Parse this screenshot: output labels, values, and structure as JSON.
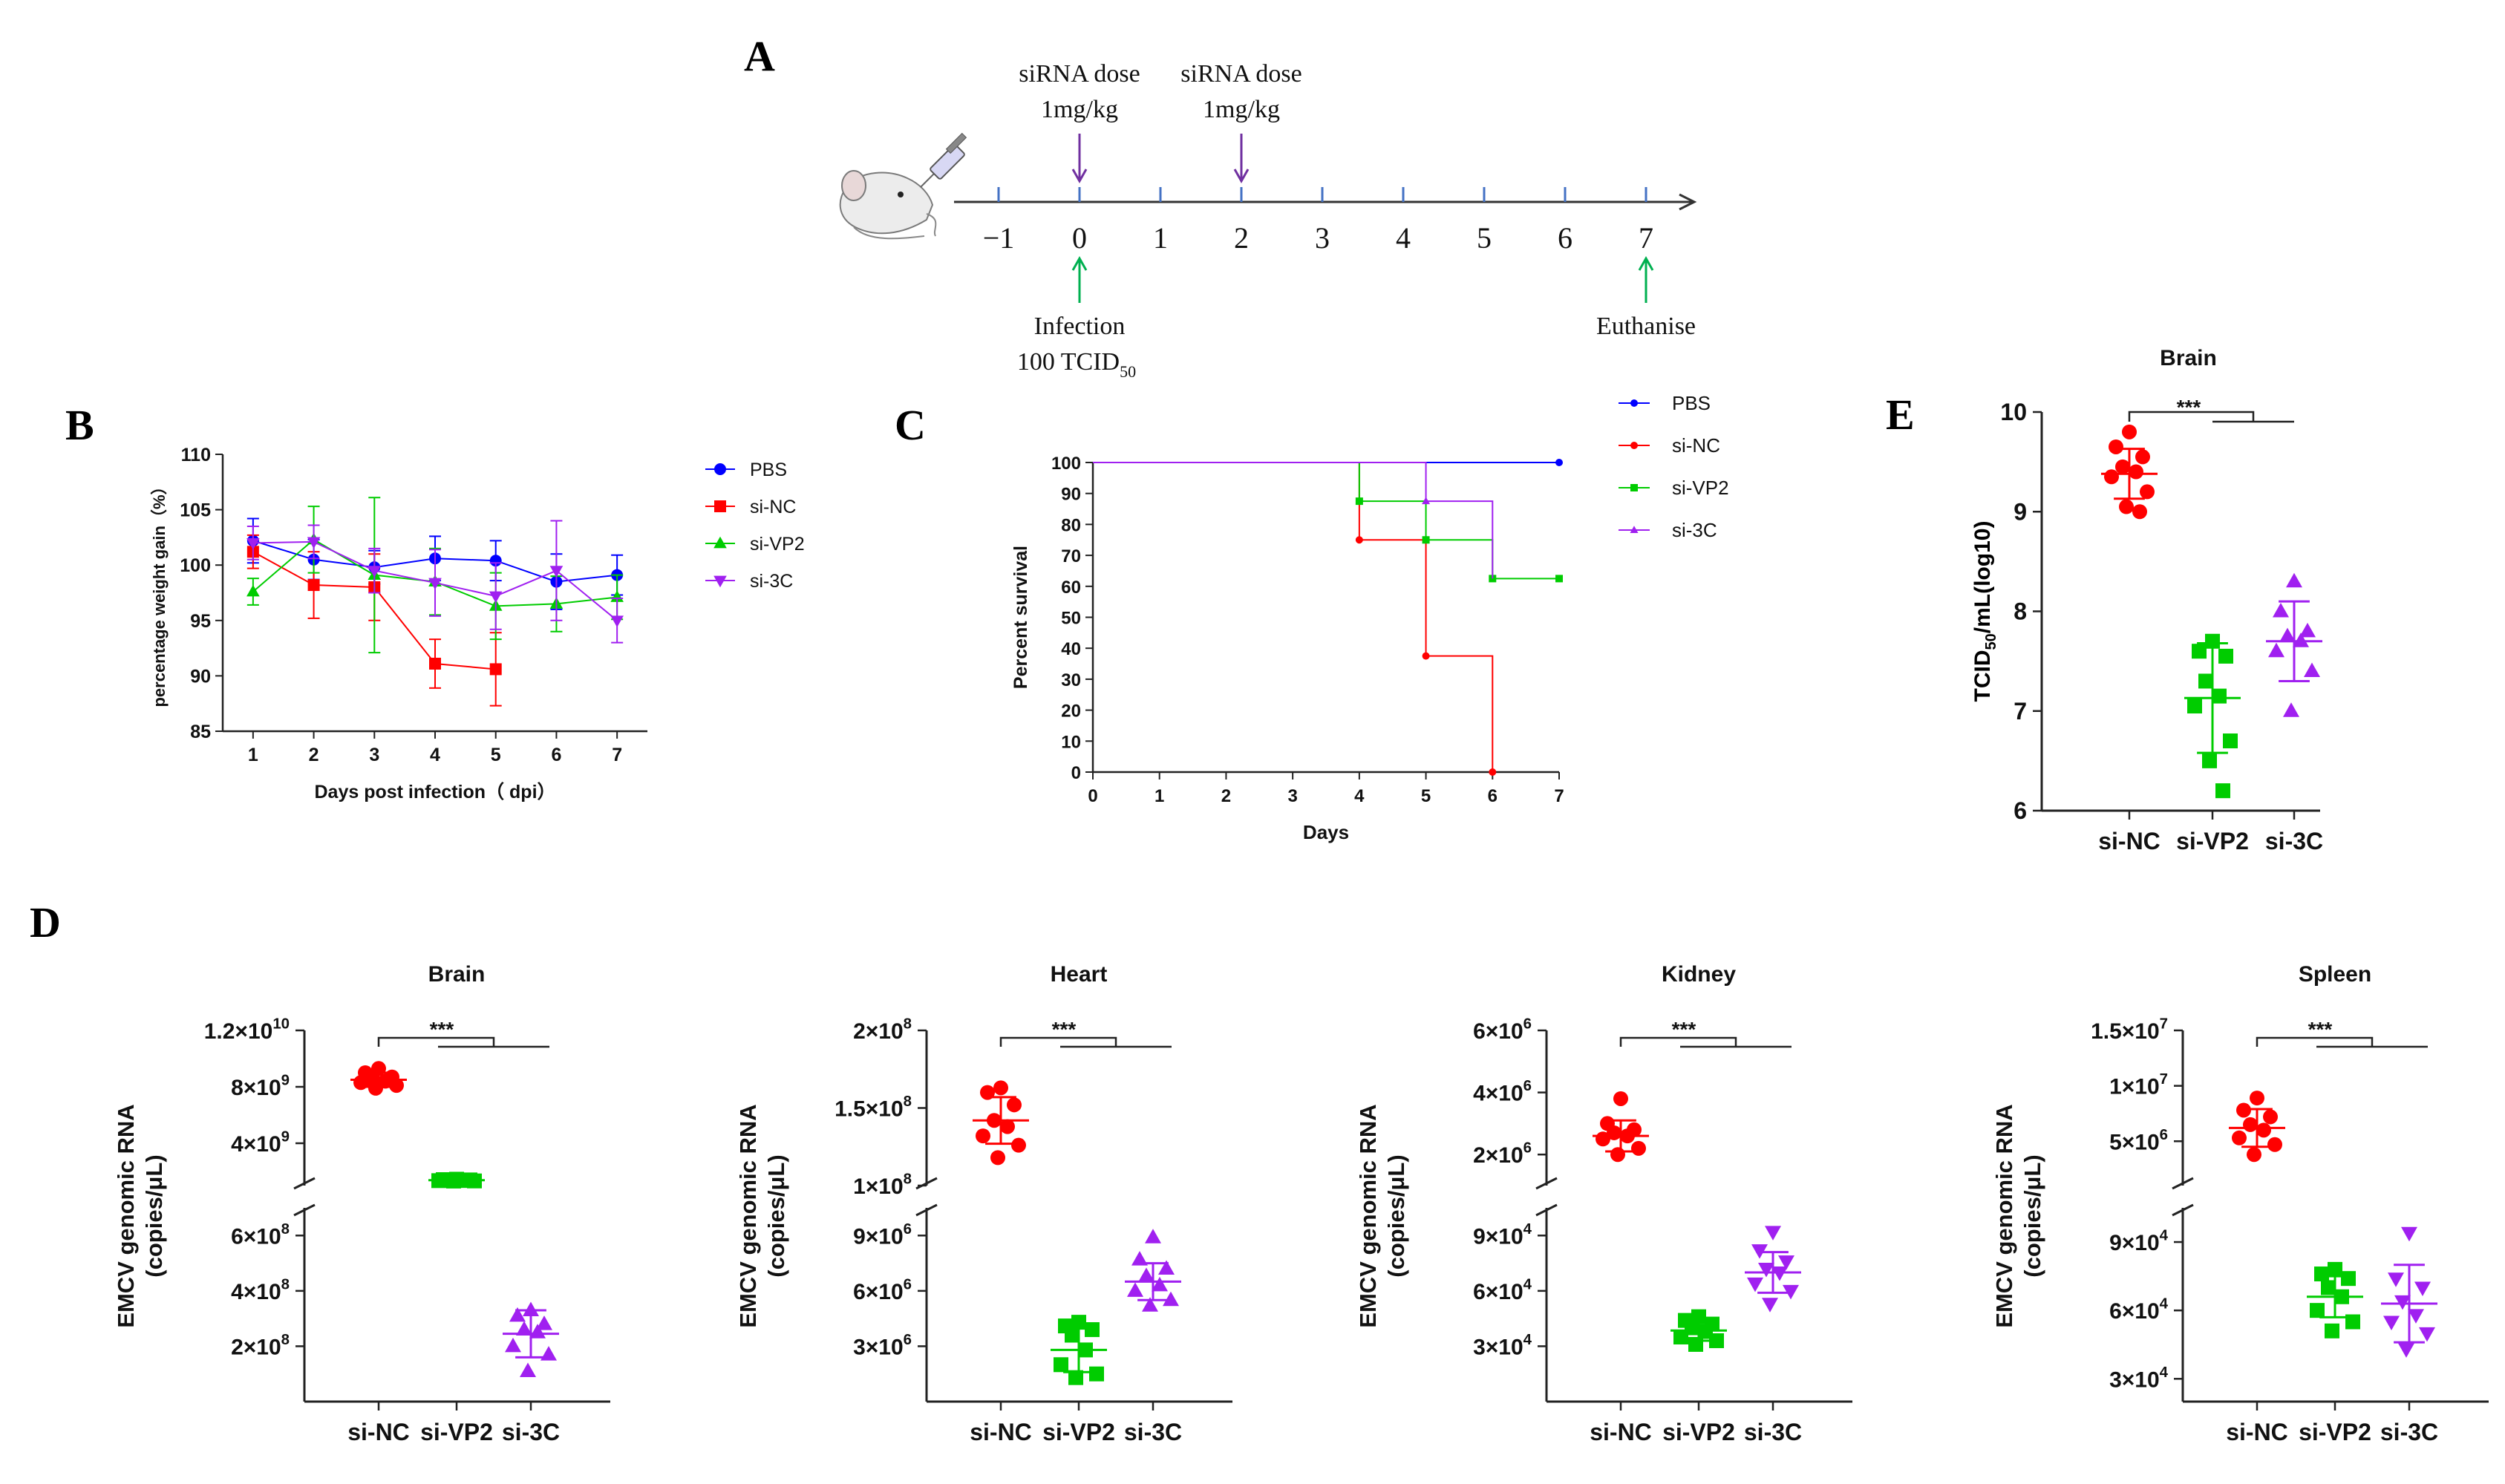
{
  "panel_labels": {
    "A": "A",
    "B": "B",
    "C": "C",
    "D": "D",
    "E": "E"
  },
  "timeline": {
    "ticks": [
      "−1",
      "0",
      "1",
      "2",
      "3",
      "4",
      "5",
      "6",
      "7"
    ],
    "dose1": [
      "siRNA dose",
      "1mg/kg"
    ],
    "dose2": [
      "siRNA dose",
      "1mg/kg"
    ],
    "infection": [
      "Infection",
      "100 TCID",
      "50"
    ],
    "euthanise": "Euthanise",
    "colors": {
      "dose": "#7030a0",
      "event": "#00b050",
      "axis": "#333333",
      "tick": "#4472c4"
    }
  },
  "series_colors": {
    "PBS": "#0000ff",
    "si-NC": "#ff0000",
    "si-VP2": "#00cc00",
    "si-3C": "#a020f0"
  },
  "chart_data": [
    {
      "id": "B",
      "type": "line",
      "title": "",
      "xlabel": "Days post infection（ dpi）",
      "ylabel": "percentage weight gain（%）",
      "x": [
        1,
        2,
        3,
        4,
        5,
        6,
        7
      ],
      "xlim": [
        0.5,
        7.5
      ],
      "ylim": [
        85,
        110
      ],
      "yticks": [
        85,
        90,
        95,
        100,
        105,
        110
      ],
      "legend": "right",
      "series": [
        {
          "name": "PBS",
          "marker": "circle",
          "values": [
            102.2,
            100.5,
            99.8,
            100.6,
            100.4,
            98.5,
            99.1
          ],
          "err": [
            2,
            1.8,
            1.5,
            2.0,
            1.8,
            2.5,
            1.8
          ]
        },
        {
          "name": "si-NC",
          "marker": "square",
          "values": [
            101.2,
            98.2,
            98.0,
            91.1,
            90.6,
            null,
            null
          ],
          "err": [
            1.5,
            3,
            3,
            2.2,
            3.3,
            null,
            null
          ]
        },
        {
          "name": "si-VP2",
          "marker": "triangle-up",
          "values": [
            97.6,
            102.3,
            99.1,
            98.5,
            96.3,
            96.5,
            97.1
          ],
          "err": [
            1.2,
            3,
            7,
            3,
            3,
            2.5,
            2.0
          ]
        },
        {
          "name": "si-3C",
          "marker": "triangle-down",
          "values": [
            102.0,
            102.1,
            99.5,
            98.4,
            97.2,
            99.5,
            95.0
          ],
          "err": [
            1.5,
            1.5,
            2,
            3,
            3,
            4.5,
            2.0
          ]
        }
      ]
    },
    {
      "id": "C",
      "type": "line",
      "title": "",
      "xlabel": "Days",
      "ylabel": "Percent survival",
      "xlim": [
        0,
        7
      ],
      "ylim": [
        0,
        100
      ],
      "xticks": [
        0,
        1,
        2,
        3,
        4,
        5,
        6,
        7
      ],
      "yticks": [
        0,
        10,
        20,
        30,
        40,
        50,
        60,
        70,
        80,
        90,
        100
      ],
      "legend": "right",
      "series": [
        {
          "name": "PBS",
          "steps": [
            [
              0,
              100
            ],
            [
              7,
              100
            ]
          ],
          "markers": [
            [
              7,
              100
            ]
          ]
        },
        {
          "name": "si-NC",
          "steps": [
            [
              0,
              100
            ],
            [
              4,
              100
            ],
            [
              4,
              75
            ],
            [
              5,
              75
            ],
            [
              5,
              37.5
            ],
            [
              6,
              37.5
            ],
            [
              6,
              0
            ]
          ],
          "markers": [
            [
              4,
              75
            ],
            [
              5,
              37.5
            ],
            [
              6,
              0
            ]
          ]
        },
        {
          "name": "si-VP2",
          "steps": [
            [
              0,
              100
            ],
            [
              4,
              100
            ],
            [
              4,
              87.5
            ],
            [
              5,
              87.5
            ],
            [
              5,
              75
            ],
            [
              6,
              75
            ],
            [
              6,
              62.5
            ],
            [
              7,
              62.5
            ]
          ],
          "markers": [
            [
              4,
              87.5
            ],
            [
              5,
              75
            ],
            [
              6,
              62.5
            ],
            [
              7,
              62.5
            ]
          ]
        },
        {
          "name": "si-3C",
          "steps": [
            [
              0,
              100
            ],
            [
              5,
              100
            ],
            [
              5,
              87.5
            ],
            [
              6,
              87.5
            ],
            [
              6,
              62.5
            ]
          ],
          "markers": [
            [
              5,
              87.5
            ]
          ]
        }
      ]
    },
    {
      "id": "E",
      "type": "scatter",
      "title": "Brain",
      "ylabel": "TCID",
      "ylabel_sub": "50",
      "ylabel_rest": "/mL(log10)",
      "categories": [
        "si-NC",
        "si-VP2",
        "si-3C"
      ],
      "ylim": [
        6,
        10
      ],
      "yticks": [
        "6",
        "7",
        "8",
        "9",
        "10"
      ],
      "significance": "***",
      "series": [
        {
          "name": "si-NC",
          "marker": "circle",
          "values": [
            9.8,
            9.65,
            9.55,
            9.45,
            9.4,
            9.35,
            9.2,
            9.05,
            9.0
          ],
          "mean": 9.38,
          "sd": 0.25
        },
        {
          "name": "si-VP2",
          "marker": "square",
          "values": [
            7.7,
            7.6,
            7.55,
            7.3,
            7.15,
            7.05,
            6.7,
            6.5,
            6.2
          ],
          "mean": 7.13,
          "sd": 0.55
        },
        {
          "name": "si-3C",
          "marker": "triangle-up",
          "values": [
            8.3,
            8.0,
            7.8,
            7.75,
            7.7,
            7.6,
            7.4,
            7.0
          ],
          "mean": 7.7,
          "sd": 0.4
        }
      ]
    },
    {
      "id": "D-Brain",
      "type": "scatter",
      "title": "Brain",
      "ylabel": [
        "EMCV genomic RNA",
        "(copies/μL)"
      ],
      "categories": [
        "si-NC",
        "si-VP2",
        "si-3C"
      ],
      "axis_break": true,
      "lower_ylim": [
        0,
        700000000
      ],
      "upper_ylim": [
        1000000000,
        12000000000
      ],
      "lower_ticks": [
        {
          "label": "2×10",
          "exp": "8",
          "value": 200000000
        },
        {
          "label": "4×10",
          "exp": "8",
          "value": 400000000
        },
        {
          "label": "6×10",
          "exp": "8",
          "value": 600000000
        }
      ],
      "upper_ticks": [
        {
          "label": "4×10",
          "exp": "9",
          "value": 4000000000
        },
        {
          "label": "8×10",
          "exp": "9",
          "value": 8000000000
        },
        {
          "label": "1.2×10",
          "exp": "10",
          "value": 12000000000
        }
      ],
      "significance": "***",
      "series": [
        {
          "name": "si-NC",
          "marker": "circle",
          "values": [
            9300000000,
            9000000000,
            8700000000,
            8500000000,
            8400000000,
            8300000000,
            8100000000,
            7900000000
          ],
          "mean": 8500000000,
          "sd": 500000000
        },
        {
          "name": "si-VP2",
          "marker": "square",
          "values": [
            1450000000,
            1420000000,
            1400000000,
            1380000000,
            1360000000,
            1350000000,
            1330000000,
            1320000000
          ],
          "mean": 1380000000,
          "sd": 50000000
        },
        {
          "name": "si-3C",
          "marker": "triangle-up",
          "values": [
            330000000,
            310000000,
            280000000,
            260000000,
            250000000,
            200000000,
            170000000,
            110000000
          ],
          "mean": 245000000,
          "sd": 85000000
        }
      ]
    },
    {
      "id": "D-Heart",
      "type": "scatter",
      "title": "Heart",
      "ylabel": [
        "EMCV genomic RNA",
        "(copies/μL)"
      ],
      "categories": [
        "si-NC",
        "si-VP2",
        "si-3C"
      ],
      "axis_break": true,
      "lower_ylim": [
        0,
        10500000
      ],
      "upper_ylim": [
        100000000,
        200000000
      ],
      "lower_ticks": [
        {
          "label": "3×10",
          "exp": "6",
          "value": 3000000
        },
        {
          "label": "6×10",
          "exp": "6",
          "value": 6000000
        },
        {
          "label": "9×10",
          "exp": "6",
          "value": 9000000
        }
      ],
      "upper_ticks": [
        {
          "label": "1×10",
          "exp": "8",
          "value": 100000000
        },
        {
          "label": "1.5×10",
          "exp": "8",
          "value": 150000000
        },
        {
          "label": "2×10",
          "exp": "8",
          "value": 200000000
        }
      ],
      "significance": "***",
      "series": [
        {
          "name": "si-NC",
          "marker": "circle",
          "values": [
            163000000,
            160000000,
            152000000,
            142000000,
            138000000,
            132000000,
            126000000,
            118000000
          ],
          "mean": 142000000,
          "sd": 15000000
        },
        {
          "name": "si-VP2",
          "marker": "square",
          "values": [
            4300000,
            4100000,
            3900000,
            3600000,
            2800000,
            2000000,
            1500000,
            1300000
          ],
          "mean": 2800000,
          "sd": 1200000
        },
        {
          "name": "si-3C",
          "marker": "triangle-up",
          "values": [
            8900000,
            7700000,
            7200000,
            6800000,
            6300000,
            6000000,
            5500000,
            5200000
          ],
          "mean": 6500000,
          "sd": 1000000
        }
      ]
    },
    {
      "id": "D-Kidney",
      "type": "scatter",
      "title": "Kidney",
      "ylabel": [
        "EMCV genomic RNA",
        "(copies/μL)"
      ],
      "categories": [
        "si-NC",
        "si-VP2",
        "si-3C"
      ],
      "axis_break": true,
      "lower_ylim": [
        0,
        105000
      ],
      "upper_ylim": [
        1000000,
        6000000
      ],
      "lower_ticks": [
        {
          "label": "3×10",
          "exp": "4",
          "value": 30000
        },
        {
          "label": "6×10",
          "exp": "4",
          "value": 60000
        },
        {
          "label": "9×10",
          "exp": "4",
          "value": 90000
        }
      ],
      "upper_ticks": [
        {
          "label": "2×10",
          "exp": "6",
          "value": 2000000
        },
        {
          "label": "4×10",
          "exp": "6",
          "value": 4000000
        },
        {
          "label": "6×10",
          "exp": "6",
          "value": 6000000
        }
      ],
      "significance": "***",
      "series": [
        {
          "name": "si-NC",
          "marker": "circle",
          "values": [
            3800000,
            3000000,
            2800000,
            2700000,
            2600000,
            2500000,
            2200000,
            2000000
          ],
          "mean": 2600000,
          "sd": 500000
        },
        {
          "name": "si-VP2",
          "marker": "square",
          "values": [
            46000,
            44000,
            42000,
            40000,
            38000,
            35000,
            33000,
            31000
          ],
          "mean": 38500,
          "sd": 5500
        },
        {
          "name": "si-3C",
          "marker": "triangle-down",
          "values": [
            92000,
            82000,
            76000,
            72000,
            70000,
            64000,
            60000,
            53000
          ],
          "mean": 70000,
          "sd": 11000
        }
      ]
    },
    {
      "id": "D-Spleen",
      "type": "scatter",
      "title": "Spleen",
      "ylabel": [
        "EMCV genomic RNA",
        "(copies/μL)"
      ],
      "categories": [
        "si-NC",
        "si-VP2",
        "si-3C"
      ],
      "axis_break": true,
      "lower_ylim": [
        20000,
        105000
      ],
      "upper_ylim": [
        1000000,
        15000000
      ],
      "lower_ticks": [
        {
          "label": "3×10",
          "exp": "4",
          "value": 30000
        },
        {
          "label": "6×10",
          "exp": "4",
          "value": 60000
        },
        {
          "label": "9×10",
          "exp": "4",
          "value": 90000
        }
      ],
      "upper_ticks": [
        {
          "label": "5×10",
          "exp": "6",
          "value": 5000000
        },
        {
          "label": "1×10",
          "exp": "7",
          "value": 10000000
        },
        {
          "label": "1.5×10",
          "exp": "7",
          "value": 15000000
        }
      ],
      "significance": "***",
      "series": [
        {
          "name": "si-NC",
          "marker": "circle",
          "values": [
            8900000,
            7800000,
            7200000,
            6500000,
            6000000,
            5300000,
            4700000,
            3800000
          ],
          "mean": 6200000,
          "sd": 1700000
        },
        {
          "name": "si-VP2",
          "marker": "square",
          "values": [
            78000,
            76000,
            74000,
            70000,
            66000,
            60000,
            55000,
            51000
          ],
          "mean": 66000,
          "sd": 9000
        },
        {
          "name": "si-3C",
          "marker": "triangle-down",
          "values": [
            94000,
            74000,
            70000,
            64000,
            58000,
            55000,
            50000,
            43000
          ],
          "mean": 63000,
          "sd": 17000
        }
      ]
    }
  ]
}
